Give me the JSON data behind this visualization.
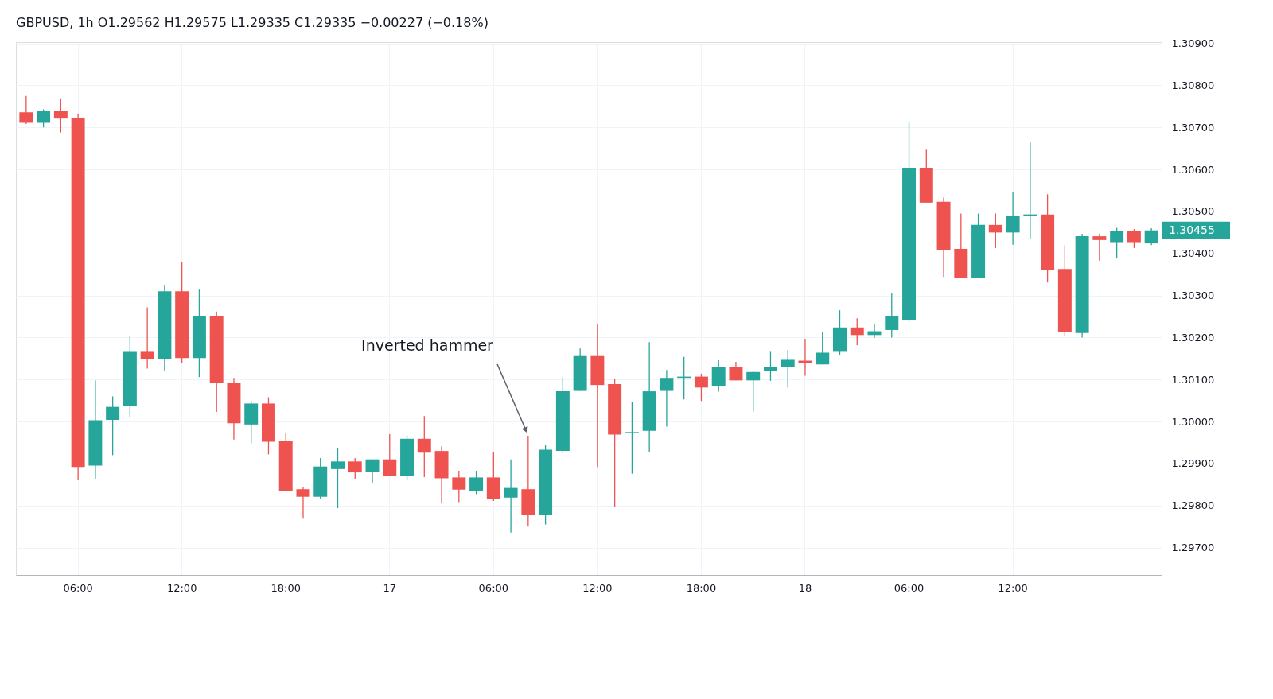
{
  "chart_data": {
    "type": "candlestick",
    "title": "GBPUSD, 1h O1.29562 H1.29575 L1.29335 C1.29335 −0.00227 (−0.18%)",
    "categories": [
      null,
      null,
      null,
      "06:00",
      null,
      null,
      null,
      null,
      null,
      "12:00",
      null,
      null,
      null,
      null,
      null,
      "18:00",
      null,
      null,
      null,
      null,
      null,
      "17",
      null,
      null,
      null,
      null,
      null,
      "06:00",
      null,
      null,
      null,
      null,
      null,
      "12:00",
      null,
      null,
      null,
      null,
      null,
      "18:00",
      null,
      null,
      null,
      null,
      null,
      "18",
      null,
      null,
      null,
      null,
      null,
      "06:00",
      null,
      null,
      null,
      null,
      null,
      "12:00",
      null,
      null,
      null,
      null,
      null,
      null,
      null,
      null
    ],
    "ohlc": [
      [
        1.30736,
        1.30775,
        1.30708,
        1.30711
      ],
      [
        1.30711,
        1.30743,
        1.307,
        1.30739
      ],
      [
        1.30739,
        1.30769,
        1.30688,
        1.30721
      ],
      [
        1.30722,
        1.30733,
        1.29862,
        1.29892
      ],
      [
        1.29895,
        1.30098,
        1.29864,
        1.30003
      ],
      [
        1.30004,
        1.3006,
        1.2992,
        1.30035
      ],
      [
        1.30037,
        1.30204,
        1.30009,
        1.30166
      ],
      [
        1.30166,
        1.30272,
        1.30126,
        1.30149
      ],
      [
        1.30149,
        1.30325,
        1.30121,
        1.3031
      ],
      [
        1.3031,
        1.30379,
        1.3014,
        1.30151
      ],
      [
        1.30151,
        1.30314,
        1.30106,
        1.3025
      ],
      [
        1.3025,
        1.30262,
        1.30023,
        1.30091
      ],
      [
        1.30093,
        1.30104,
        1.29957,
        1.29996
      ],
      [
        1.29993,
        1.30049,
        1.29948,
        1.30043
      ],
      [
        1.30043,
        1.30058,
        1.29922,
        1.29952
      ],
      [
        1.29954,
        1.29974,
        1.29835,
        1.29835
      ],
      [
        1.29839,
        1.29845,
        1.29769,
        1.29821
      ],
      [
        1.29821,
        1.29913,
        1.29816,
        1.29893
      ],
      [
        1.29887,
        1.29938,
        1.29794,
        1.29905
      ],
      [
        1.29905,
        1.29913,
        1.29864,
        1.29879
      ],
      [
        1.29881,
        1.2991,
        1.29854,
        1.2991
      ],
      [
        1.2991,
        1.2997,
        1.2987,
        1.2987
      ],
      [
        1.2987,
        1.29967,
        1.29862,
        1.29959
      ],
      [
        1.29959,
        1.30013,
        1.29868,
        1.29926
      ],
      [
        1.2993,
        1.29941,
        1.29805,
        1.29865
      ],
      [
        1.29867,
        1.29883,
        1.29808,
        1.29838
      ],
      [
        1.29835,
        1.29883,
        1.29827,
        1.29867
      ],
      [
        1.29867,
        1.29927,
        1.29811,
        1.29816
      ],
      [
        1.29819,
        1.2991,
        1.29736,
        1.29842
      ],
      [
        1.29839,
        1.29966,
        1.2975,
        1.29778
      ],
      [
        1.29778,
        1.29944,
        1.29755,
        1.29933
      ],
      [
        1.2993,
        1.30105,
        1.29925,
        1.30072
      ],
      [
        1.30073,
        1.30174,
        1.30073,
        1.30156
      ],
      [
        1.30156,
        1.30233,
        1.29892,
        1.30087
      ],
      [
        1.30089,
        1.30102,
        1.29797,
        1.29969
      ],
      [
        1.29972,
        1.30047,
        1.29876,
        1.29975
      ],
      [
        1.29978,
        1.30189,
        1.29928,
        1.30072
      ],
      [
        1.30073,
        1.30123,
        1.29988,
        1.30104
      ],
      [
        1.30104,
        1.30154,
        1.30053,
        1.30107
      ],
      [
        1.30107,
        1.30114,
        1.30049,
        1.30081
      ],
      [
        1.30084,
        1.30146,
        1.30071,
        1.30129
      ],
      [
        1.30129,
        1.30142,
        1.30098,
        1.30098
      ],
      [
        1.30098,
        1.30121,
        1.30024,
        1.30118
      ],
      [
        1.3012,
        1.30166,
        1.30097,
        1.30129
      ],
      [
        1.3013,
        1.3017,
        1.30081,
        1.30147
      ],
      [
        1.30145,
        1.30197,
        1.30109,
        1.30139
      ],
      [
        1.30136,
        1.30213,
        1.30136,
        1.30164
      ],
      [
        1.30166,
        1.30265,
        1.30159,
        1.30224
      ],
      [
        1.30224,
        1.30246,
        1.30182,
        1.30206
      ],
      [
        1.30206,
        1.30232,
        1.30199,
        1.30215
      ],
      [
        1.30218,
        1.30306,
        1.302,
        1.30251
      ],
      [
        1.30241,
        1.30713,
        1.30238,
        1.30604
      ],
      [
        1.30604,
        1.30649,
        1.30521,
        1.30521
      ],
      [
        1.30523,
        1.30533,
        1.30344,
        1.30409
      ],
      [
        1.30411,
        1.30495,
        1.30341,
        1.30341
      ],
      [
        1.30341,
        1.30495,
        1.30341,
        1.30468
      ],
      [
        1.30468,
        1.30495,
        1.30413,
        1.3045
      ],
      [
        1.3045,
        1.30547,
        1.30421,
        1.3049
      ],
      [
        1.30489,
        1.30666,
        1.30434,
        1.30493
      ],
      [
        1.30493,
        1.30541,
        1.30331,
        1.30361
      ],
      [
        1.30363,
        1.3042,
        1.30204,
        1.30213
      ],
      [
        1.30211,
        1.30447,
        1.302,
        1.30441
      ],
      [
        1.30441,
        1.30447,
        1.30383,
        1.30432
      ],
      [
        1.30427,
        1.30461,
        1.30388,
        1.30454
      ],
      [
        1.30454,
        1.30458,
        1.30413,
        1.30427
      ],
      [
        1.30424,
        1.3046,
        1.3042,
        1.30455
      ]
    ],
    "colors": [
      "#ef5350",
      "#26a69a",
      "#ef5350",
      "#ef5350",
      "#26a69a",
      "#26a69a",
      "#26a69a",
      "#ef5350",
      "#26a69a",
      "#ef5350",
      "#26a69a",
      "#ef5350",
      "#ef5350",
      "#26a69a",
      "#ef5350",
      "#ef5350",
      "#ef5350",
      "#26a69a",
      "#26a69a",
      "#ef5350",
      "#26a69a",
      "#ef5350",
      "#26a69a",
      "#ef5350",
      "#ef5350",
      "#ef5350",
      "#26a69a",
      "#ef5350",
      "#26a69a",
      "#ef5350",
      "#26a69a",
      "#26a69a",
      "#26a69a",
      "#ef5350",
      "#ef5350",
      "#26a69a",
      "#26a69a",
      "#26a69a",
      "#26a69a",
      "#ef5350",
      "#26a69a",
      "#ef5350",
      "#26a69a",
      "#26a69a",
      "#26a69a",
      "#ef5350",
      "#26a69a",
      "#26a69a",
      "#ef5350",
      "#26a69a",
      "#26a69a",
      "#26a69a",
      "#ef5350",
      "#ef5350",
      "#ef5350",
      "#26a69a",
      "#ef5350",
      "#26a69a",
      "#26a69a",
      "#ef5350",
      "#ef5350",
      "#26a69a",
      "#ef5350",
      "#26a69a",
      "#ef5350",
      "#26a69a"
    ],
    "ylim": [
      1.29635,
      1.30903
    ],
    "yticks": [
      {
        "value": 1.297,
        "label": "1.29700"
      },
      {
        "value": 1.298,
        "label": "1.29800"
      },
      {
        "value": 1.299,
        "label": "1.29900"
      },
      {
        "value": 1.3,
        "label": "1.30000"
      },
      {
        "value": 1.301,
        "label": "1.30100"
      },
      {
        "value": 1.302,
        "label": "1.30200"
      },
      {
        "value": 1.303,
        "label": "1.30300"
      },
      {
        "value": 1.304,
        "label": "1.30400"
      },
      {
        "value": 1.305,
        "label": "1.30500"
      },
      {
        "value": 1.306,
        "label": "1.30600"
      },
      {
        "value": 1.307,
        "label": "1.30700"
      },
      {
        "value": 1.308,
        "label": "1.30800"
      },
      {
        "value": 1.309,
        "label": "1.30900"
      }
    ],
    "annotations": [
      "Inverted hammer",
      "1.30455"
    ],
    "grid": true
  }
}
